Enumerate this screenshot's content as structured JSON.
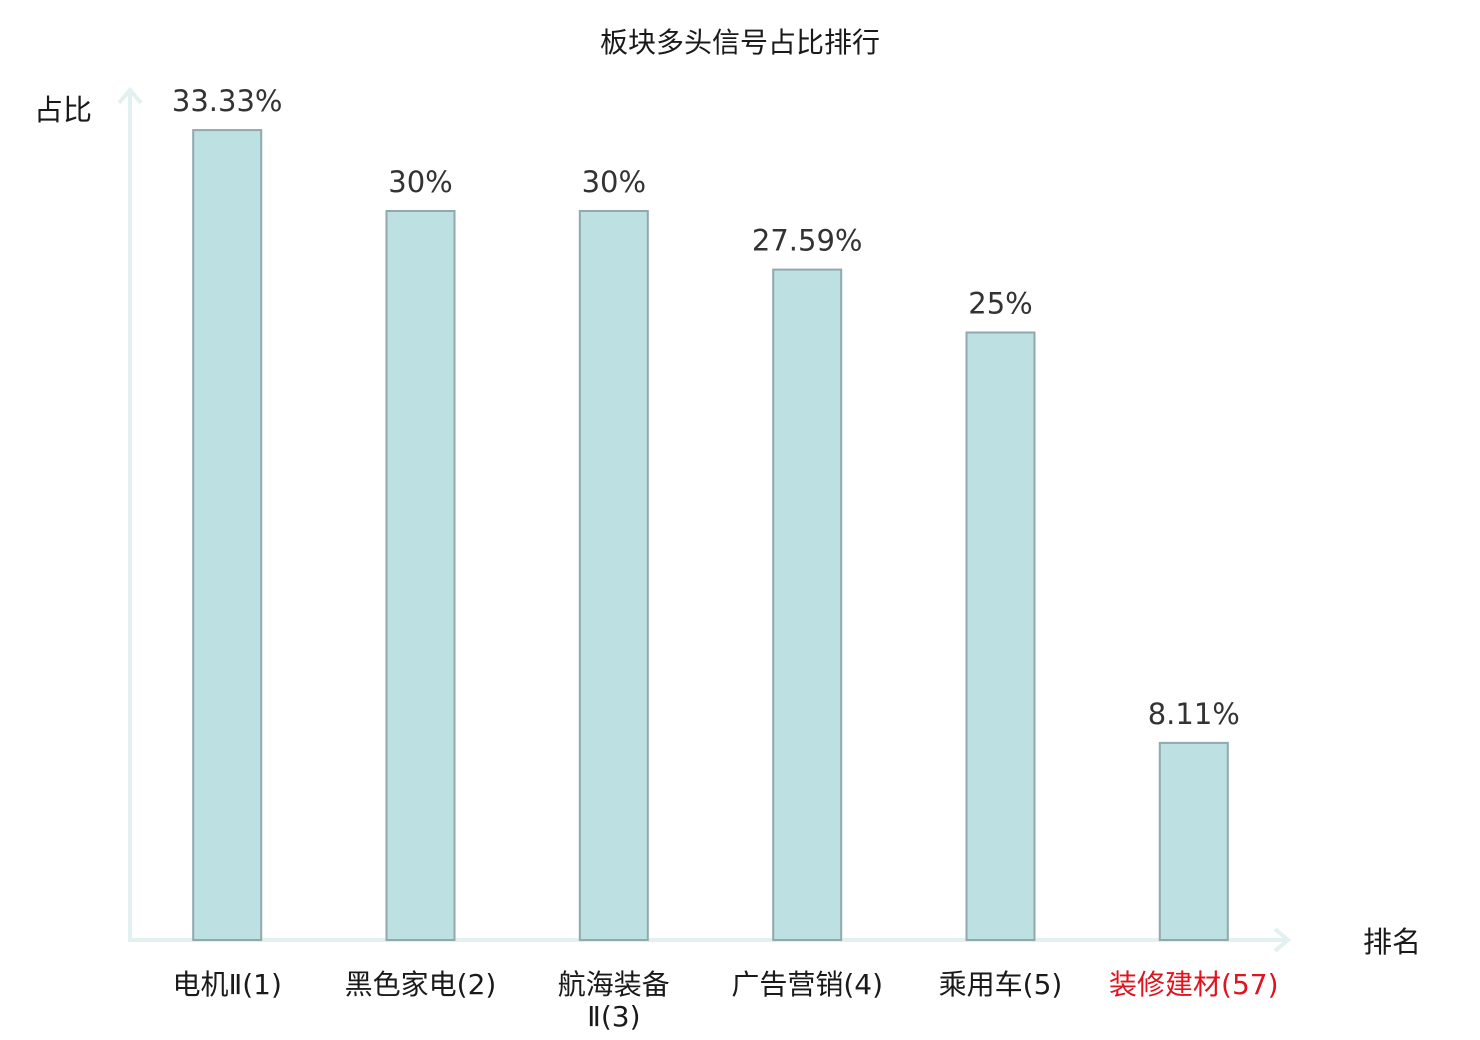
{
  "chart_data": {
    "type": "bar",
    "title": "板块多头信号占比排行",
    "ylabel": "占比",
    "xlabel": "排名",
    "ylim": [
      0,
      36.5
    ],
    "grid": false,
    "legend": "none",
    "categories": [
      {
        "name": "电机Ⅱ",
        "rank": "(1)",
        "lines": [
          "电机Ⅱ(1)"
        ],
        "highlight": false
      },
      {
        "name": "黑色家电",
        "rank": "(2)",
        "lines": [
          "黑色家电(2)"
        ],
        "highlight": false
      },
      {
        "name": "航海装备Ⅱ",
        "rank": "(3)",
        "lines": [
          "航海装备",
          "Ⅱ(3)"
        ],
        "highlight": false
      },
      {
        "name": "广告营销",
        "rank": "(4)",
        "lines": [
          "广告营销(4)"
        ],
        "highlight": false
      },
      {
        "name": "乘用车",
        "rank": "(5)",
        "lines": [
          "乘用车(5)"
        ],
        "highlight": false
      },
      {
        "name": "装修建材",
        "rank": "(57)",
        "lines": [
          "装修建材(57)"
        ],
        "highlight": true
      }
    ],
    "values": [
      33.33,
      30,
      30,
      27.59,
      25,
      8.11
    ],
    "value_labels": [
      "33.33%",
      "30%",
      "30%",
      "27.59%",
      "25%",
      "8.11%"
    ],
    "colors": {
      "bar_fill": "#bde0e2",
      "bar_stroke": "#8fa9ac",
      "axis": "#e2f1ef",
      "highlight_text": "#e0141e",
      "text": "#1a1a1a",
      "value_text": "#333333"
    }
  }
}
